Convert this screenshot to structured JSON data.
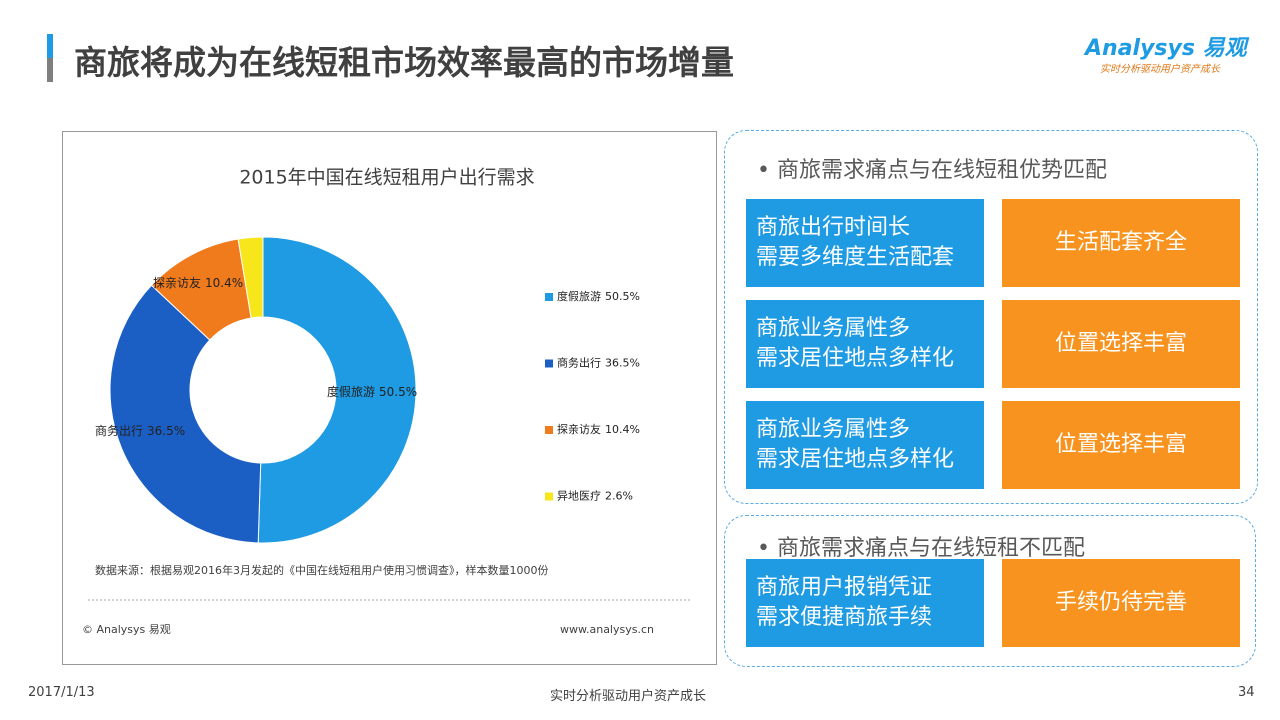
{
  "header": {
    "title": "商旅将成为在线短租市场效率最高的市场增量",
    "logo": "Analysys",
    "logo_cn": "易观",
    "tagline": "实时分析驱动用户资产成长"
  },
  "chart_data": {
    "type": "donut",
    "title": "2015年中国在线短租用户出行需求",
    "categories": [
      "度假旅游",
      "商务出行",
      "探亲访友",
      "异地医疗"
    ],
    "values": [
      50.5,
      36.5,
      10.4,
      2.6
    ],
    "value_labels": [
      "50.5%",
      "36.5%",
      "10.4%",
      "2.6%"
    ],
    "colors": [
      "#1e9be3",
      "#1c5fc4",
      "#f07b1d",
      "#f7e61c"
    ],
    "legend": "right"
  },
  "chart_notes": {
    "source": "数据来源：根据易观2016年3月发起的《中国在线短租用户使用习惯调查》，样本数量1000份",
    "copyright": "© Analysys 易观",
    "website": "www.analysys.cn"
  },
  "panel": {
    "sections": [
      {
        "heading": "商旅需求痛点与在线短租优势匹配",
        "rows": [
          {
            "left": [
              "商旅出行时间长",
              "需要多维度生活配套"
            ],
            "right": "生活配套齐全"
          },
          {
            "left": [
              "商旅业务属性多",
              "需求居住地点多样化"
            ],
            "right": "位置选择丰富"
          },
          {
            "left": [
              "商旅业务属性多",
              "需求居住地点多样化"
            ],
            "right": "位置选择丰富"
          }
        ]
      },
      {
        "heading": "商旅需求痛点与在线短租不匹配",
        "rows": [
          {
            "left": [
              "商旅用户报销凭证",
              "需求便捷商旅手续"
            ],
            "right": "手续仍待完善"
          }
        ]
      }
    ]
  },
  "footer": {
    "date": "2017/1/13",
    "center": "实时分析驱动用户资产成长",
    "page": "34"
  }
}
